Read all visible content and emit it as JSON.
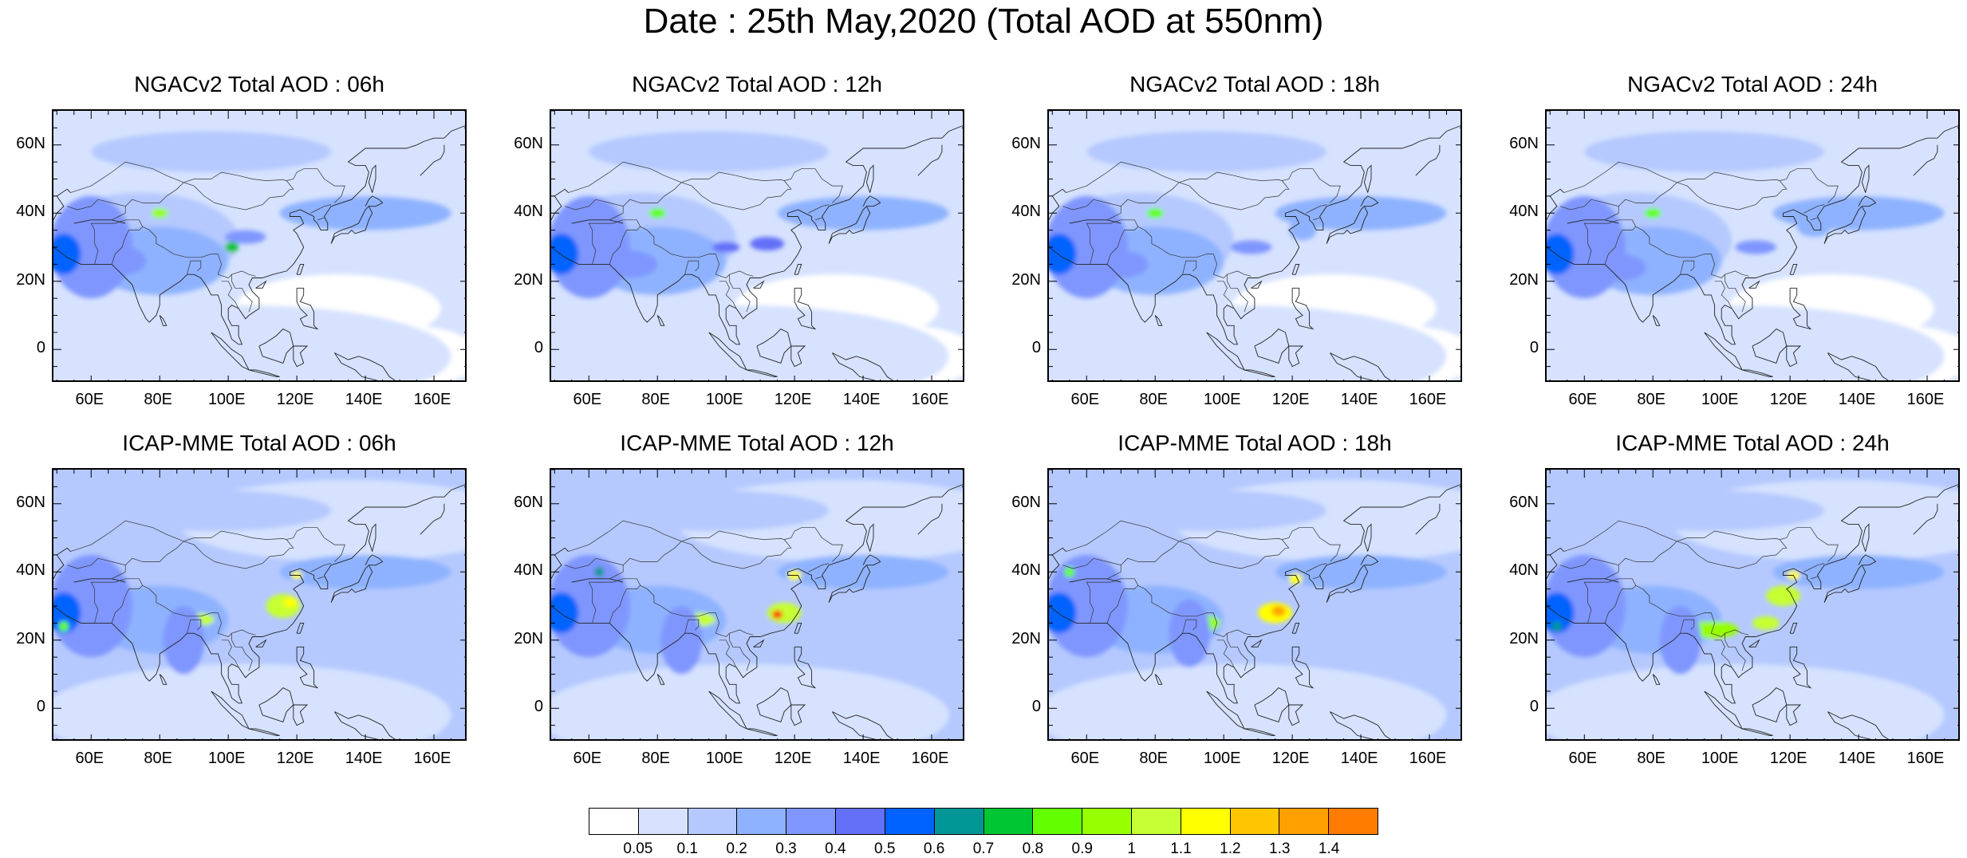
{
  "title": "Date : 25th May,2020 (Total AOD at 550nm)",
  "panels": [
    {
      "title": "NGACv2 Total AOD : 06h",
      "model": "NGACv2",
      "hour": "06h"
    },
    {
      "title": "NGACv2 Total AOD : 12h",
      "model": "NGACv2",
      "hour": "12h"
    },
    {
      "title": "NGACv2 Total AOD : 18h",
      "model": "NGACv2",
      "hour": "18h"
    },
    {
      "title": "NGACv2 Total AOD : 24h",
      "model": "NGACv2",
      "hour": "24h"
    },
    {
      "title": "ICAP-MME Total AOD : 06h",
      "model": "ICAP-MME",
      "hour": "06h"
    },
    {
      "title": "ICAP-MME Total AOD : 12h",
      "model": "ICAP-MME",
      "hour": "12h"
    },
    {
      "title": "ICAP-MME Total AOD : 18h",
      "model": "ICAP-MME",
      "hour": "18h"
    },
    {
      "title": "ICAP-MME Total AOD : 24h",
      "model": "ICAP-MME",
      "hour": "24h"
    }
  ],
  "map": {
    "lon_range": [
      49,
      170
    ],
    "lat_range": [
      -10,
      70
    ],
    "lon_ticks": [
      "60E",
      "80E",
      "100E",
      "120E",
      "140E",
      "160E"
    ],
    "lat_ticks": [
      "60N",
      "40N",
      "20N",
      "0"
    ]
  },
  "colorbar": {
    "labels": [
      "0.05",
      "0.1",
      "0.2",
      "0.3",
      "0.4",
      "0.5",
      "0.6",
      "0.7",
      "0.8",
      "0.9",
      "1",
      "1.1",
      "1.2",
      "1.3",
      "1.4"
    ],
    "colors": [
      "#ffffff",
      "#d6e2ff",
      "#b5c9ff",
      "#8eb2ff",
      "#7f96ff",
      "#6370f7",
      "#0063ff",
      "#009696",
      "#00c633",
      "#63ff00",
      "#96ff00",
      "#c6ff33",
      "#ffff00",
      "#ffc600",
      "#ffa000",
      "#ff7c00",
      "#ff1900"
    ]
  }
}
